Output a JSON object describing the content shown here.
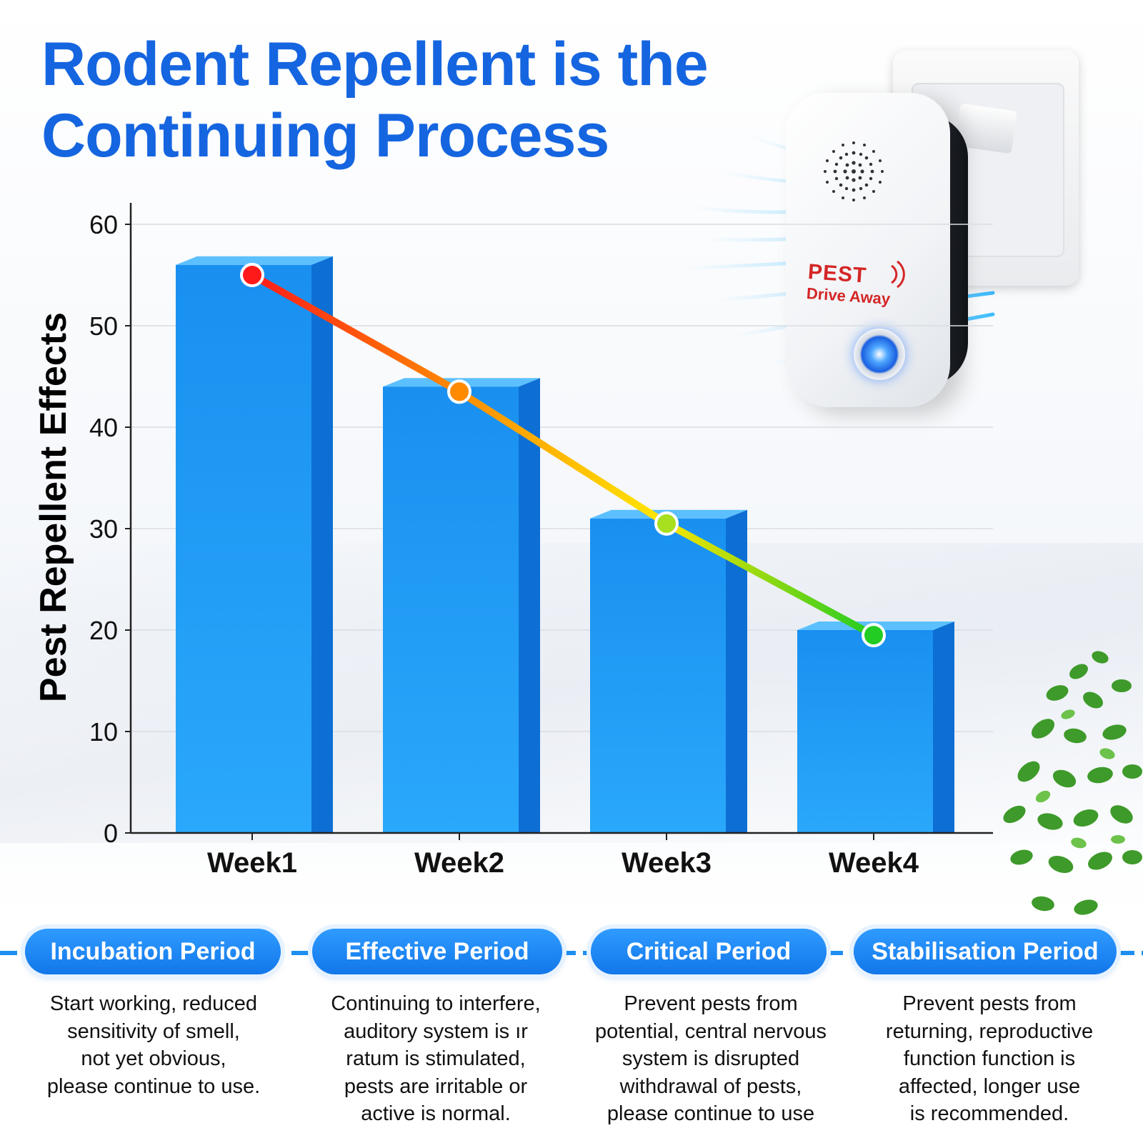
{
  "title": {
    "line1": "Rodent Repellent is the",
    "line2": "Continuing Process"
  },
  "device": {
    "label_top": "PEST",
    "label_bottom": "Drive Away"
  },
  "chart_data": {
    "type": "bar",
    "categories": [
      "Week1",
      "Week2",
      "Week3",
      "Week4"
    ],
    "values": [
      56,
      44,
      31,
      20
    ],
    "line_values": [
      55,
      43.5,
      30.5,
      19.5
    ],
    "ylabel": "Pest Repellent Effects",
    "xlabel": "",
    "ylim": [
      0,
      60
    ],
    "yticks": [
      0,
      10,
      20,
      30,
      40,
      50,
      60
    ],
    "grid": true,
    "bar_color": "#1e9bf5",
    "line_gradient": [
      "#ff1a1a",
      "#ff8a00",
      "#ffe600",
      "#22cc22"
    ]
  },
  "periods": [
    {
      "label": "Incubation Period",
      "lines": [
        "Start working, reduced",
        "sensitivity of smell,",
        "not yet obvious,",
        "please continue to use."
      ]
    },
    {
      "label": "Effective Period",
      "lines": [
        "Continuing to interfere,",
        "auditory system is ır",
        "ratum is stimulated,",
        "pests are irritable or",
        "active is normal."
      ]
    },
    {
      "label": "Critical Period",
      "lines": [
        "Prevent pests from",
        "potential, central nervous",
        "system is disrupted",
        "withdrawal of pests,",
        "please continue to use"
      ]
    },
    {
      "label": "Stabilisation Period",
      "lines": [
        "Prevent pests from",
        "returning, reproductive",
        "function function is",
        "affected, longer use",
        "is recommended."
      ]
    }
  ]
}
